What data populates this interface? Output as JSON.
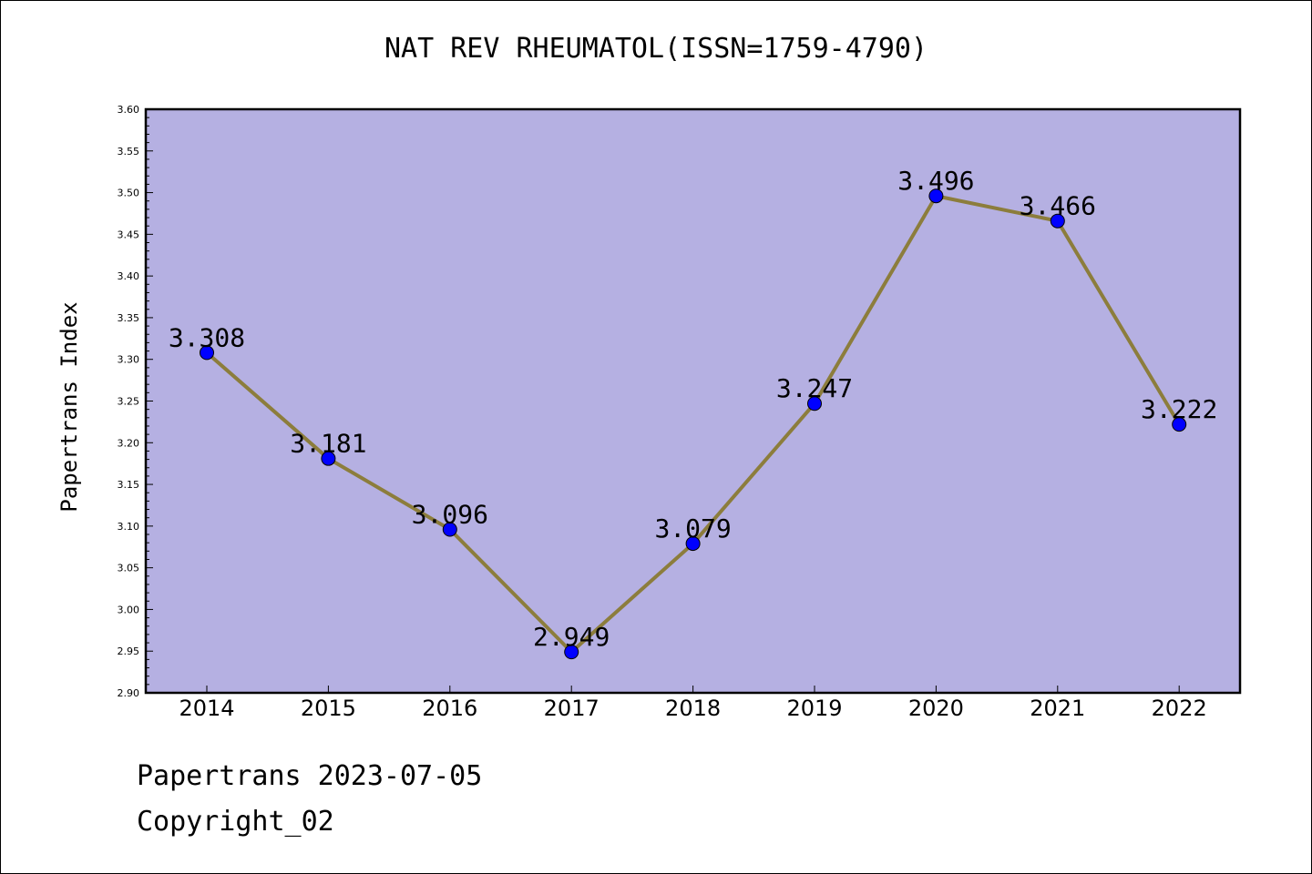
{
  "title": "NAT REV RHEUMATOL(ISSN=1759-4790)",
  "footer": {
    "line1": "Papertrans 2023-07-05",
    "line2": "Copyright_02"
  },
  "colors": {
    "plot_background": "#b5b0e2",
    "line": "#8c7d3c",
    "marker": "#0000ff"
  },
  "chart_data": {
    "type": "line",
    "title": "NAT REV RHEUMATOL(ISSN=1759-4790)",
    "xlabel": "",
    "ylabel": "Papertrans Index",
    "categories": [
      "2014",
      "2015",
      "2016",
      "2017",
      "2018",
      "2019",
      "2020",
      "2021",
      "2022"
    ],
    "values": [
      3.308,
      3.181,
      3.096,
      2.949,
      3.079,
      3.247,
      3.496,
      3.466,
      3.222
    ],
    "data_labels": [
      "3.308",
      "3.181",
      "3.096",
      "2.949",
      "3.079",
      "3.247",
      "3.496",
      "3.466",
      "3.222"
    ],
    "ylim": [
      2.9,
      3.6
    ],
    "yticks": [
      "2.90",
      "2.95",
      "3.00",
      "3.05",
      "3.10",
      "3.15",
      "3.20",
      "3.25",
      "3.30",
      "3.35",
      "3.40",
      "3.45",
      "3.50",
      "3.55",
      "3.60"
    ],
    "grid": false,
    "legend": "none"
  }
}
